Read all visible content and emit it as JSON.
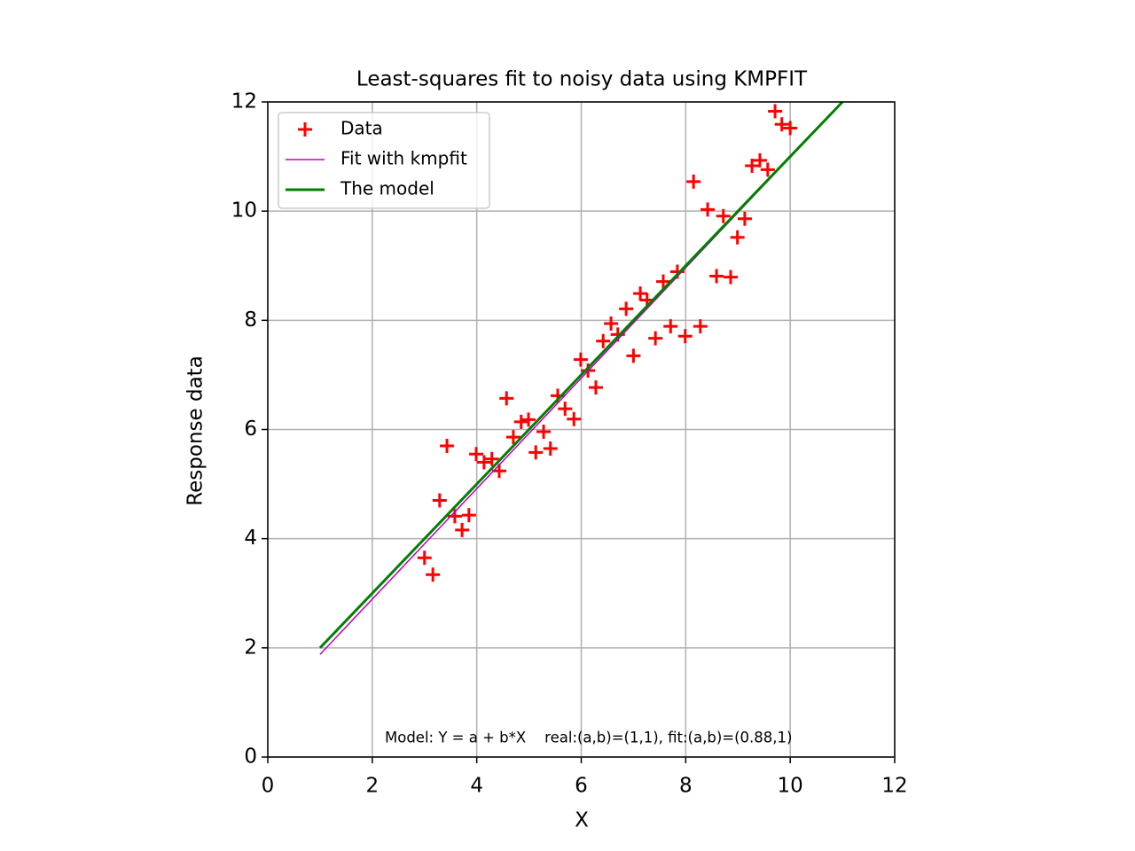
{
  "chart_data": {
    "type": "scatter",
    "title": "Least-squares fit to noisy data using KMPFIT",
    "xlabel": "X",
    "ylabel": "Response data",
    "annotation": "Model: Y = a + b*X    real:(a,b)=(1,1), fit:(a,b)=(0.88,1)",
    "xlim": [
      0,
      12
    ],
    "ylim": [
      0,
      12
    ],
    "xticks": [
      0,
      2,
      4,
      6,
      8,
      10,
      12
    ],
    "yticks": [
      0,
      2,
      4,
      6,
      8,
      10,
      12
    ],
    "grid": true,
    "legend": "upper left",
    "series": [
      {
        "name": "Data",
        "type": "scatter",
        "color": "#ff0000",
        "x": [
          3.0,
          3.16,
          3.29,
          3.43,
          3.58,
          3.72,
          3.85,
          3.99,
          4.14,
          4.29,
          4.43,
          4.57,
          4.7,
          4.85,
          4.99,
          5.13,
          5.28,
          5.41,
          5.55,
          5.69,
          5.86,
          5.99,
          6.13,
          6.28,
          6.42,
          6.57,
          6.7,
          6.86,
          7.0,
          7.13,
          7.26,
          7.42,
          7.57,
          7.71,
          7.84,
          7.99,
          8.15,
          8.28,
          8.42,
          8.59,
          8.72,
          8.86,
          8.99,
          9.13,
          9.27,
          9.42,
          9.57,
          9.71,
          9.84,
          10.0
        ],
        "values": [
          3.65,
          3.34,
          4.7,
          5.7,
          4.41,
          4.16,
          4.43,
          5.55,
          5.4,
          5.46,
          5.24,
          6.57,
          5.86,
          6.14,
          6.18,
          5.58,
          5.96,
          5.65,
          6.62,
          6.38,
          6.19,
          7.28,
          7.08,
          6.77,
          7.62,
          7.94,
          7.74,
          8.21,
          7.35,
          8.49,
          8.37,
          7.67,
          8.71,
          7.89,
          8.89,
          7.71,
          10.54,
          7.89,
          10.03,
          8.81,
          9.91,
          8.79,
          9.52,
          9.86,
          10.83,
          10.93,
          10.76,
          11.83,
          11.59,
          11.52
        ]
      },
      {
        "name": "Fit with kmpfit",
        "type": "line",
        "color": "#bf00bf",
        "width": 1.5,
        "x": [
          1,
          11
        ],
        "values": [
          1.88,
          12.0
        ]
      },
      {
        "name": "The model",
        "type": "line",
        "color": "#008000",
        "width": 3,
        "x": [
          1,
          11
        ],
        "values": [
          2,
          12
        ]
      }
    ]
  }
}
